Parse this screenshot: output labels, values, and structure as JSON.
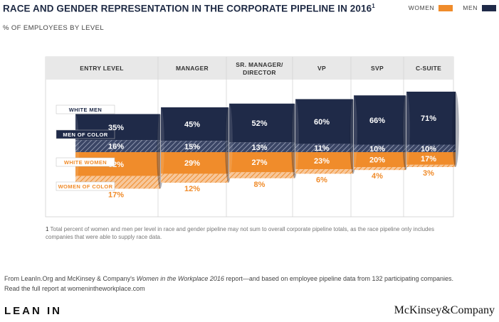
{
  "header": {
    "title": "RACE AND GENDER REPRESENTATION IN THE CORPORATE PIPELINE IN 2016",
    "title_sup": "1",
    "subtitle": "% OF EMPLOYEES BY LEVEL"
  },
  "legend": {
    "women_label": "WOMEN",
    "men_label": "MEN"
  },
  "colors": {
    "women": "#f08c2b",
    "men": "#1f2a48",
    "column_header_bg": "#e8e8e8"
  },
  "chart_data": {
    "type": "area",
    "title": "RACE AND GENDER REPRESENTATION IN THE CORPORATE PIPELINE IN 2016",
    "subtitle": "% OF EMPLOYEES BY LEVEL",
    "categories": [
      "ENTRY LEVEL",
      "MANAGER",
      "SR. MANAGER/ DIRECTOR",
      "VP",
      "SVP",
      "C-SUITE"
    ],
    "series": [
      {
        "name": "WHITE MEN",
        "values": [
          35,
          45,
          52,
          60,
          66,
          71
        ]
      },
      {
        "name": "MEN OF COLOR",
        "values": [
          16,
          15,
          13,
          11,
          10,
          10
        ]
      },
      {
        "name": "WHITE WOMEN",
        "values": [
          32,
          29,
          27,
          23,
          20,
          17
        ]
      },
      {
        "name": "WOMEN OF COLOR",
        "values": [
          17,
          12,
          8,
          6,
          4,
          3
        ]
      }
    ],
    "series_groups": {
      "MEN": [
        "WHITE MEN",
        "MEN OF COLOR"
      ],
      "WOMEN": [
        "WHITE WOMEN",
        "WOMEN OF COLOR"
      ]
    },
    "value_suffix": "%",
    "legend_position": "top-right",
    "grid": false
  },
  "footnote": {
    "marker": "1",
    "text": "Total percent of women and men per level in race and gender pipeline may not sum to overall corporate pipeline totals, as the race pipeline only includes companies that were able to supply race data."
  },
  "source": {
    "prefix": "From LeanIn.Org and McKinsey & Company's ",
    "report_title": "Women in the Workplace 2016",
    "suffix": " report—and based on employee pipeline data from 132 participating companies.",
    "line2": "Read the full report at womenintheworkplace.com"
  },
  "brands": {
    "left": "LEAN IN",
    "right": "McKinsey&Company"
  }
}
